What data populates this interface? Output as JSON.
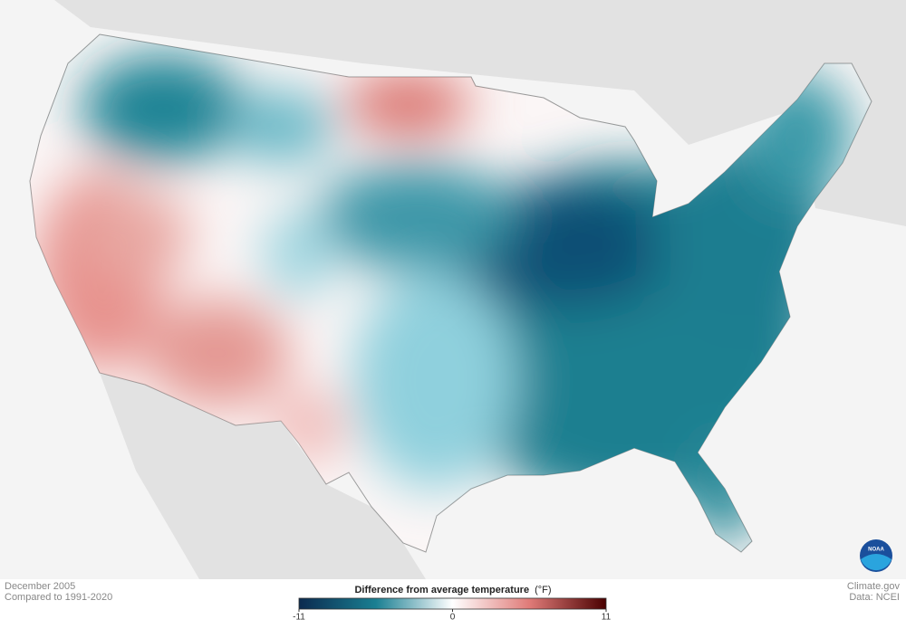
{
  "footer": {
    "period": "December 2005",
    "baseline": "Compared to 1991-2020",
    "source": "Climate.gov",
    "data_source": "Data: NCEI"
  },
  "logo": {
    "text": "NOAA"
  },
  "legend": {
    "title": "Difference from average temperature",
    "unit": "(°F)",
    "ticks": [
      -11,
      0,
      11
    ],
    "colors": [
      "#0b2a4f",
      "#1a7f92",
      "#ffffff",
      "#e07b78",
      "#4a0000"
    ]
  }
}
